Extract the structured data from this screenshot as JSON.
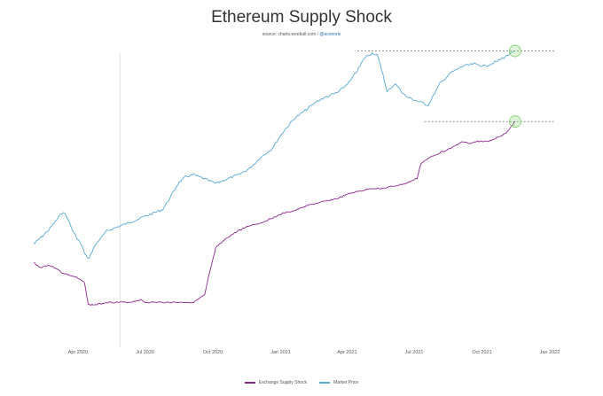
{
  "title": "Ethereum Supply Shock",
  "source_prefix": "source: charts.woobull.com / ",
  "source_link": "@econoriz",
  "chart_data": {
    "type": "line",
    "title": "Ethereum Supply Shock",
    "x_ticks": [
      "Apr 2020",
      "Jul 2020",
      "Oct 2020",
      "Jan 2021",
      "Apr 2021",
      "Jul 2021",
      "Oct 2021",
      "Jan 2022"
    ],
    "x_range": [
      "2020-02-01",
      "2022-01-01"
    ],
    "colors": {
      "supply_shock": "#8e2a8e",
      "price": "#5aabd6",
      "highlight": "#7ccf6a",
      "reference": "#555555"
    },
    "series": [
      {
        "name": "Exchange Supply Shock",
        "axis": "right-lower",
        "points": [
          [
            "2020-02-01",
            0.62
          ],
          [
            "2020-02-10",
            0.6
          ],
          [
            "2020-02-20",
            0.61
          ],
          [
            "2020-03-01",
            0.6
          ],
          [
            "2020-03-10",
            0.58
          ],
          [
            "2020-03-20",
            0.57
          ],
          [
            "2020-03-30",
            0.56
          ],
          [
            "2020-04-10",
            0.54
          ],
          [
            "2020-04-15",
            0.45
          ],
          [
            "2020-04-25",
            0.45
          ],
          [
            "2020-05-10",
            0.46
          ],
          [
            "2020-05-25",
            0.46
          ],
          [
            "2020-06-10",
            0.46
          ],
          [
            "2020-06-25",
            0.47
          ],
          [
            "2020-07-01",
            0.46
          ],
          [
            "2020-07-20",
            0.46
          ],
          [
            "2020-08-10",
            0.46
          ],
          [
            "2020-08-25",
            0.46
          ],
          [
            "2020-09-05",
            0.46
          ],
          [
            "2020-09-20",
            0.49
          ],
          [
            "2020-09-25",
            0.56
          ],
          [
            "2020-10-05",
            0.68
          ],
          [
            "2020-10-20",
            0.72
          ],
          [
            "2020-11-05",
            0.75
          ],
          [
            "2020-11-20",
            0.77
          ],
          [
            "2020-12-05",
            0.78
          ],
          [
            "2020-12-20",
            0.8
          ],
          [
            "2021-01-05",
            0.82
          ],
          [
            "2021-01-20",
            0.83
          ],
          [
            "2021-02-05",
            0.85
          ],
          [
            "2021-02-20",
            0.86
          ],
          [
            "2021-03-05",
            0.87
          ],
          [
            "2021-03-20",
            0.88
          ],
          [
            "2021-04-05",
            0.9
          ],
          [
            "2021-04-20",
            0.91
          ],
          [
            "2021-05-05",
            0.92
          ],
          [
            "2021-05-20",
            0.92
          ],
          [
            "2021-06-05",
            0.93
          ],
          [
            "2021-06-20",
            0.94
          ],
          [
            "2021-07-05",
            0.96
          ],
          [
            "2021-07-10",
            1.02
          ],
          [
            "2021-07-25",
            1.05
          ],
          [
            "2021-08-10",
            1.07
          ],
          [
            "2021-08-25",
            1.09
          ],
          [
            "2021-09-05",
            1.11
          ],
          [
            "2021-09-15",
            1.1
          ],
          [
            "2021-09-25",
            1.11
          ],
          [
            "2021-10-10",
            1.11
          ],
          [
            "2021-10-25",
            1.13
          ],
          [
            "2021-11-05",
            1.15
          ],
          [
            "2021-11-15",
            1.19
          ]
        ]
      },
      {
        "name": "Market Price",
        "axis": "right-upper",
        "points": [
          [
            "2020-02-01",
            0.12
          ],
          [
            "2020-02-20",
            0.18
          ],
          [
            "2020-03-05",
            0.24
          ],
          [
            "2020-03-12",
            0.27
          ],
          [
            "2020-03-18",
            0.24
          ],
          [
            "2020-03-25",
            0.18
          ],
          [
            "2020-04-05",
            0.12
          ],
          [
            "2020-04-10",
            0.08
          ],
          [
            "2020-04-15",
            0.05
          ],
          [
            "2020-04-25",
            0.12
          ],
          [
            "2020-05-10",
            0.18
          ],
          [
            "2020-05-25",
            0.2
          ],
          [
            "2020-06-10",
            0.22
          ],
          [
            "2020-06-25",
            0.24
          ],
          [
            "2020-07-10",
            0.26
          ],
          [
            "2020-07-25",
            0.28
          ],
          [
            "2020-08-05",
            0.34
          ],
          [
            "2020-08-15",
            0.4
          ],
          [
            "2020-08-25",
            0.43
          ],
          [
            "2020-09-05",
            0.44
          ],
          [
            "2020-09-20",
            0.42
          ],
          [
            "2020-10-05",
            0.4
          ],
          [
            "2020-10-20",
            0.42
          ],
          [
            "2020-11-05",
            0.44
          ],
          [
            "2020-11-20",
            0.47
          ],
          [
            "2020-12-05",
            0.52
          ],
          [
            "2020-12-20",
            0.56
          ],
          [
            "2021-01-05",
            0.64
          ],
          [
            "2021-01-20",
            0.7
          ],
          [
            "2021-02-05",
            0.74
          ],
          [
            "2021-02-20",
            0.78
          ],
          [
            "2021-03-05",
            0.8
          ],
          [
            "2021-03-20",
            0.82
          ],
          [
            "2021-04-05",
            0.87
          ],
          [
            "2021-04-15",
            0.92
          ],
          [
            "2021-04-25",
            0.98
          ],
          [
            "2021-05-05",
            1.0
          ],
          [
            "2021-05-12",
            0.99
          ],
          [
            "2021-05-20",
            0.9
          ],
          [
            "2021-05-25",
            0.82
          ],
          [
            "2021-06-05",
            0.86
          ],
          [
            "2021-06-20",
            0.8
          ],
          [
            "2021-07-05",
            0.78
          ],
          [
            "2021-07-20",
            0.76
          ],
          [
            "2021-08-05",
            0.86
          ],
          [
            "2021-08-20",
            0.91
          ],
          [
            "2021-09-05",
            0.94
          ],
          [
            "2021-09-20",
            0.95
          ],
          [
            "2021-10-05",
            0.94
          ],
          [
            "2021-10-20",
            0.96
          ],
          [
            "2021-11-05",
            0.99
          ],
          [
            "2021-11-15",
            1.01
          ]
        ]
      }
    ]
  },
  "legend": {
    "supply_label": "Exchange Supply Shock",
    "price_label": "Market Price"
  }
}
